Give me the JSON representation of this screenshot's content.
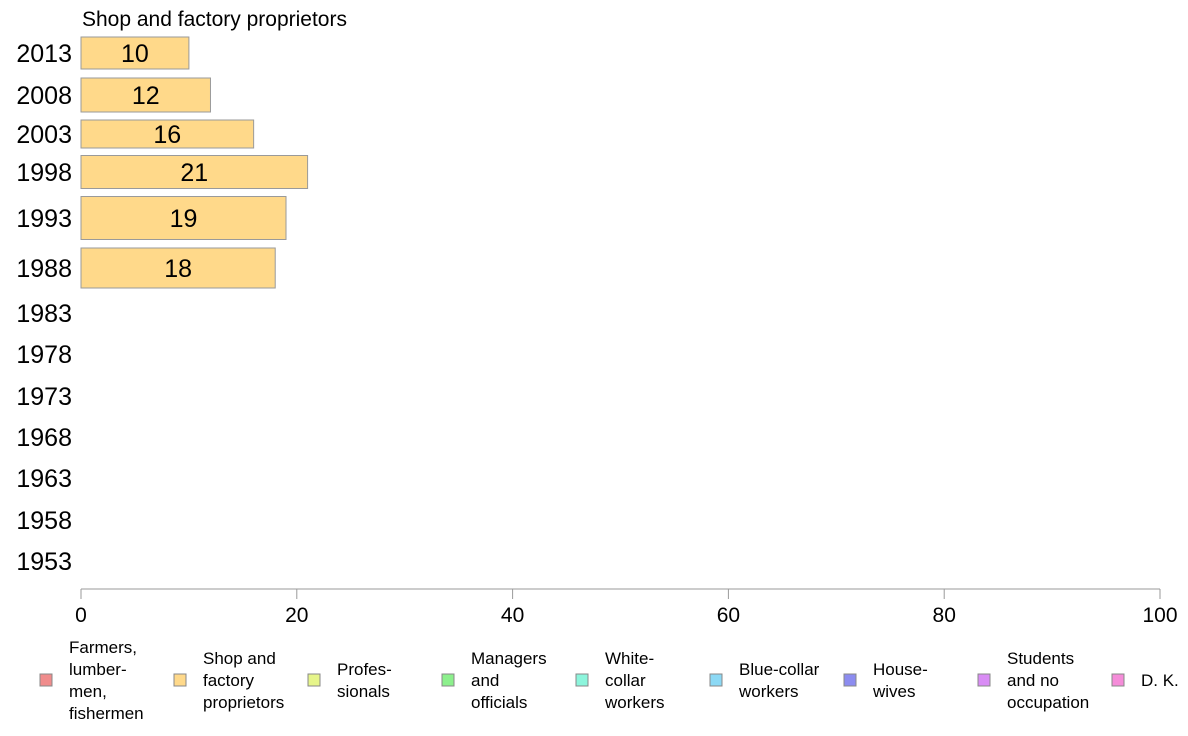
{
  "chart_data": {
    "type": "bar",
    "orientation": "horizontal",
    "title": "Shop and factory proprietors",
    "categories": [
      "2013",
      "2008",
      "2003",
      "1998",
      "1993",
      "1988",
      "1983",
      "1978",
      "1973",
      "1968",
      "1963",
      "1958",
      "1953"
    ],
    "series": [
      {
        "name": "Shop and factory proprietors",
        "values": [
          10,
          12,
          16,
          21,
          19,
          18,
          null,
          null,
          null,
          null,
          null,
          null,
          null
        ],
        "color": "#ffd98a"
      }
    ],
    "xlim": [
      0,
      100
    ],
    "xticks": [
      "0",
      "20",
      "40",
      "60",
      "80",
      "100"
    ],
    "grid": false,
    "legend_position": "bottom",
    "legend": [
      {
        "label_lines": [
          "Farmers,",
          "lumber-",
          "men,",
          "fishermen"
        ],
        "color": "#f08c8c"
      },
      {
        "label_lines": [
          "Shop and",
          "factory",
          "proprietors"
        ],
        "color": "#ffd98a"
      },
      {
        "label_lines": [
          "Profes-",
          "sionals"
        ],
        "color": "#e6f58a"
      },
      {
        "label_lines": [
          "Managers",
          "and",
          "officials"
        ],
        "color": "#8cf08c"
      },
      {
        "label_lines": [
          "White-",
          "collar",
          "workers"
        ],
        "color": "#8cf5dc"
      },
      {
        "label_lines": [
          "Blue-collar",
          "workers"
        ],
        "color": "#8cd9f5"
      },
      {
        "label_lines": [
          "House-",
          "wives"
        ],
        "color": "#8c8cf0"
      },
      {
        "label_lines": [
          "Students",
          "and no",
          "occupation"
        ],
        "color": "#d98cf5"
      },
      {
        "label_lines": [
          "D. K."
        ],
        "color": "#f58cd9"
      }
    ]
  }
}
